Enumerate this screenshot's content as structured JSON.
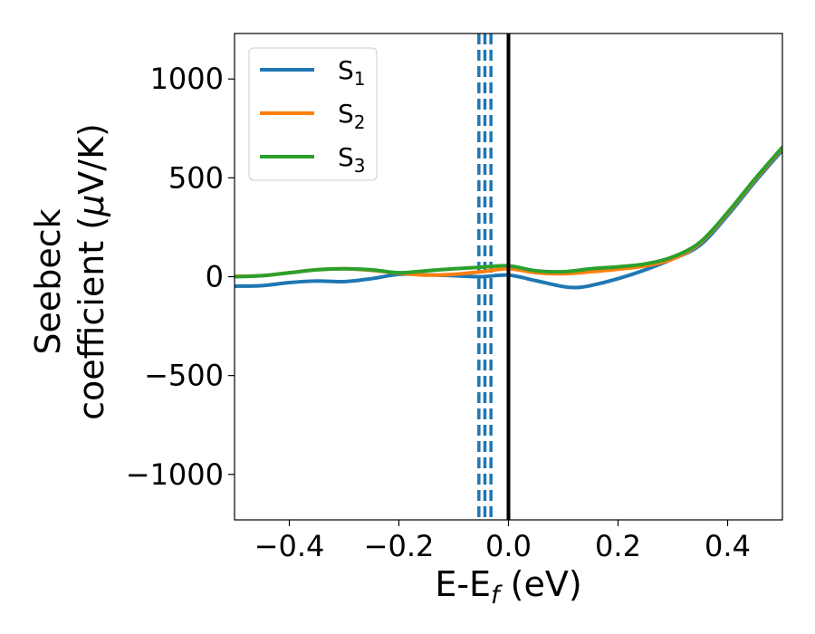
{
  "chart_data": {
    "type": "line",
    "title": "",
    "xlabel": "E-E",
    "xlabel_sub": "f",
    "xlabel_unit": " (eV)",
    "ylabel_line1": "Seebeck",
    "ylabel_line2_prefix": "coefficient  (",
    "ylabel_mu": "μ",
    "ylabel_line2_suffix": "V/K)",
    "xlim": [
      -0.5,
      0.5
    ],
    "ylim": [
      -1230,
      1230
    ],
    "xticks": [
      -0.4,
      -0.2,
      0.0,
      0.2,
      0.4
    ],
    "xtick_labels": [
      "−0.4",
      "−0.2",
      "0.0",
      "0.2",
      "0.4"
    ],
    "yticks": [
      -1000,
      -500,
      0,
      500,
      1000
    ],
    "ytick_labels": [
      "−1000",
      "−500",
      "0",
      "500",
      "1000"
    ],
    "grid": false,
    "legend_position": "top-left",
    "fermi_line": {
      "x": 0.0,
      "color": "#000000"
    },
    "dashed_lines": {
      "x": [
        -0.054,
        -0.043,
        -0.032
      ],
      "color": "#1f77b4"
    },
    "series": [
      {
        "name": "S",
        "sub": "1",
        "color": "#1f77b4",
        "x": [
          -0.5,
          -0.45,
          -0.4,
          -0.35,
          -0.3,
          -0.25,
          -0.2,
          -0.15,
          -0.1,
          -0.05,
          0.0,
          0.05,
          0.1,
          0.125,
          0.15,
          0.2,
          0.25,
          0.3,
          0.35,
          0.4,
          0.45,
          0.5
        ],
        "y": [
          -48,
          -45,
          -30,
          -22,
          -25,
          -10,
          12,
          10,
          5,
          0,
          8,
          -20,
          -50,
          -55,
          -45,
          -10,
          35,
          90,
          160,
          310,
          480,
          640
        ]
      },
      {
        "name": "S",
        "sub": "2",
        "color": "#ff7f0e",
        "x": [
          -0.5,
          -0.45,
          -0.4,
          -0.35,
          -0.3,
          -0.25,
          -0.2,
          -0.15,
          -0.1,
          -0.05,
          0.0,
          0.05,
          0.1,
          0.15,
          0.2,
          0.25,
          0.3,
          0.35,
          0.4,
          0.45,
          0.5
        ],
        "y": [
          2,
          5,
          20,
          35,
          40,
          32,
          18,
          8,
          12,
          25,
          40,
          20,
          15,
          25,
          38,
          55,
          90,
          170,
          320,
          490,
          650
        ]
      },
      {
        "name": "S",
        "sub": "3",
        "color": "#2ca02c",
        "x": [
          -0.5,
          -0.45,
          -0.4,
          -0.35,
          -0.3,
          -0.25,
          -0.2,
          -0.15,
          -0.1,
          -0.05,
          0.0,
          0.05,
          0.1,
          0.15,
          0.2,
          0.25,
          0.3,
          0.35,
          0.4,
          0.45,
          0.5
        ],
        "y": [
          0,
          5,
          20,
          35,
          40,
          35,
          20,
          30,
          40,
          48,
          55,
          30,
          25,
          40,
          50,
          65,
          100,
          175,
          325,
          495,
          655
        ]
      }
    ]
  }
}
